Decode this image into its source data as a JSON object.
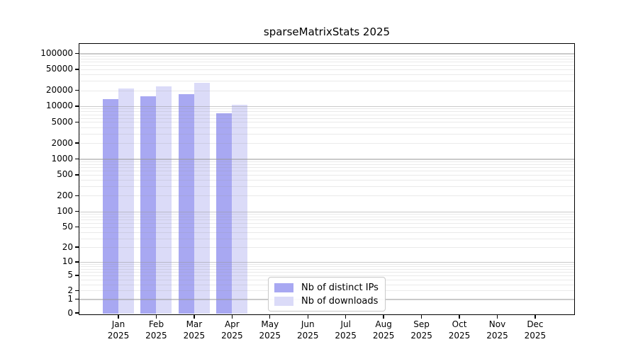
{
  "chart_data": {
    "type": "bar",
    "title": "sparseMatrixStats 2025",
    "categories": [
      "Jan",
      "Feb",
      "Mar",
      "Apr",
      "May",
      "Jun",
      "Jul",
      "Aug",
      "Sep",
      "Oct",
      "Nov",
      "Dec"
    ],
    "year_label": "2025",
    "series": [
      {
        "name": "Nb of distinct IPs",
        "color": "#a8a8f2",
        "values": [
          13600,
          15400,
          16900,
          7350,
          null,
          null,
          null,
          null,
          null,
          null,
          null,
          null
        ]
      },
      {
        "name": "Nb of downloads",
        "color": "#dbdbf8",
        "values": [
          21700,
          23700,
          27700,
          10600,
          null,
          null,
          null,
          null,
          null,
          null,
          null,
          null
        ]
      }
    ],
    "yscale": "log",
    "yticks": [
      100000,
      50000,
      20000,
      10000,
      5000,
      2000,
      1000,
      500,
      200,
      100,
      50,
      20,
      10,
      5,
      2,
      1,
      0
    ],
    "ylim": [
      0,
      151000
    ],
    "grid": true,
    "legend_position": "inside-bottom-center",
    "axis_color": "#000000",
    "grid_major_color": "rgba(150,150,150,0.50)",
    "grid_minor_color": "rgba(150,150,150,0.20)"
  }
}
